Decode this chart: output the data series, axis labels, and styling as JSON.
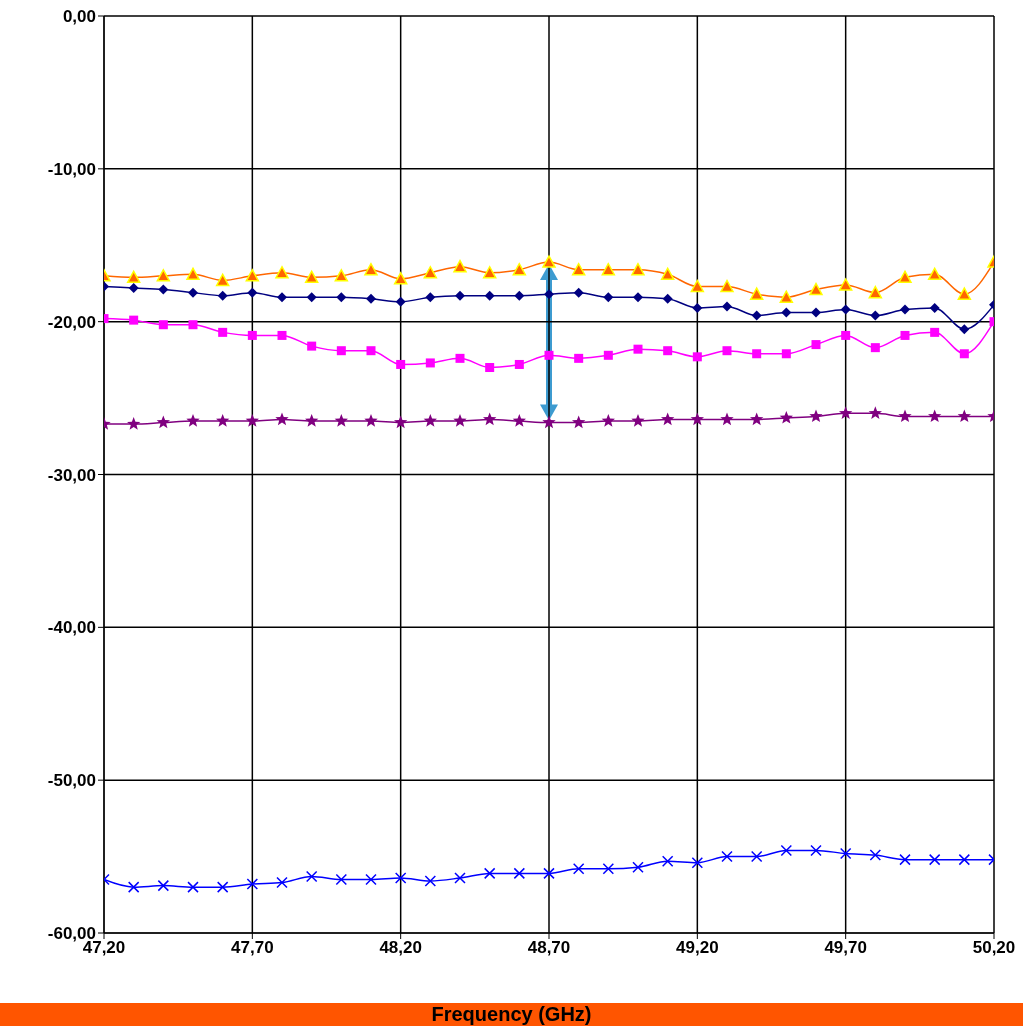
{
  "chart_data": {
    "type": "line",
    "xlabel": "Frequency (GHz)",
    "x": [
      47.2,
      47.3,
      47.4,
      47.5,
      47.6,
      47.7,
      47.8,
      47.9,
      48.0,
      48.1,
      48.2,
      48.3,
      48.4,
      48.5,
      48.6,
      48.7,
      48.8,
      48.9,
      49.0,
      49.1,
      49.2,
      49.3,
      49.4,
      49.5,
      49.6,
      49.7,
      49.8,
      49.9,
      50.0,
      50.1,
      50.2
    ],
    "xlim": [
      47.2,
      50.2
    ],
    "xticks": [
      {
        "value": 47.2,
        "label": "47,20"
      },
      {
        "value": 47.7,
        "label": "47,70"
      },
      {
        "value": 48.2,
        "label": "48,20"
      },
      {
        "value": 48.7,
        "label": "48,70"
      },
      {
        "value": 49.2,
        "label": "49,20"
      },
      {
        "value": 49.7,
        "label": "49,70"
      },
      {
        "value": 50.2,
        "label": "50,20"
      }
    ],
    "ylim": [
      -60,
      0
    ],
    "yticks": [
      {
        "value": -60,
        "label": "-60,00"
      },
      {
        "value": -50,
        "label": "-50,00"
      },
      {
        "value": -40,
        "label": "-40,00"
      },
      {
        "value": -30,
        "label": "-30,00"
      },
      {
        "value": -20,
        "label": "-20,00"
      },
      {
        "value": -10,
        "label": "-10,00"
      },
      {
        "value": 0,
        "label": "0,00"
      }
    ],
    "grid": true,
    "line_style": "solid",
    "series": [
      {
        "color": "#ff6600",
        "marker": "triangle",
        "values": [
          -17.0,
          -17.1,
          -17.0,
          -16.9,
          -17.3,
          -17.0,
          -16.8,
          -17.1,
          -17.0,
          -16.6,
          -17.2,
          -16.8,
          -16.4,
          -16.8,
          -16.6,
          -16.1,
          -16.6,
          -16.6,
          -16.6,
          -16.9,
          -17.7,
          -17.7,
          -18.2,
          -18.4,
          -17.9,
          -17.6,
          -18.1,
          -17.1,
          -16.9,
          -18.2,
          -16.1
        ]
      },
      {
        "color": "#000080",
        "marker": "diamond",
        "values": [
          -17.7,
          -17.8,
          -17.9,
          -18.1,
          -18.3,
          -18.1,
          -18.4,
          -18.4,
          -18.4,
          -18.5,
          -18.7,
          -18.4,
          -18.3,
          -18.3,
          -18.3,
          -18.2,
          -18.1,
          -18.4,
          -18.4,
          -18.5,
          -19.1,
          -19.0,
          -19.6,
          -19.4,
          -19.4,
          -19.2,
          -19.6,
          -19.2,
          -19.1,
          -20.5,
          -18.9
        ]
      },
      {
        "color": "#ff00ff",
        "marker": "square",
        "values": [
          -19.8,
          -19.9,
          -20.2,
          -20.2,
          -20.7,
          -20.9,
          -20.9,
          -21.6,
          -21.9,
          -21.9,
          -22.8,
          -22.7,
          -22.4,
          -23.0,
          -22.8,
          -22.2,
          -22.4,
          -22.2,
          -21.8,
          -21.9,
          -22.3,
          -21.9,
          -22.1,
          -22.1,
          -21.5,
          -20.9,
          -21.7,
          -20.9,
          -20.7,
          -22.1,
          -20.0
        ]
      },
      {
        "color": "#800080",
        "marker": "star",
        "values": [
          -26.7,
          -26.7,
          -26.6,
          -26.5,
          -26.5,
          -26.5,
          -26.4,
          -26.5,
          -26.5,
          -26.5,
          -26.6,
          -26.5,
          -26.5,
          -26.4,
          -26.5,
          -26.6,
          -26.6,
          -26.5,
          -26.5,
          -26.4,
          -26.4,
          -26.4,
          -26.4,
          -26.3,
          -26.2,
          -26.0,
          -26.0,
          -26.2,
          -26.2,
          -26.2,
          -26.2
        ]
      },
      {
        "color": "#0000ff",
        "marker": "cross",
        "values": [
          -56.5,
          -57.0,
          -56.9,
          -57.0,
          -57.0,
          -56.8,
          -56.7,
          -56.3,
          -56.5,
          -56.5,
          -56.4,
          -56.6,
          -56.4,
          -56.1,
          -56.1,
          -56.1,
          -55.8,
          -55.8,
          -55.7,
          -55.3,
          -55.4,
          -55.0,
          -55.0,
          -54.6,
          -54.6,
          -54.8,
          -54.9,
          -55.2,
          -55.2,
          -55.2,
          -55.2
        ]
      }
    ]
  }
}
